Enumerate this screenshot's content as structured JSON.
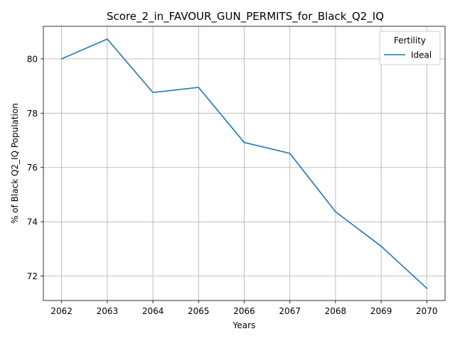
{
  "chart_data": {
    "type": "line",
    "title": "Score_2_in_FAVOUR_GUN_PERMITS_for_Black_Q2_IQ",
    "xlabel": "Years",
    "ylabel": "% of Black Q2_IQ Population",
    "x": [
      2062,
      2063,
      2064,
      2065,
      2066,
      2067,
      2068,
      2069,
      2070
    ],
    "series": [
      {
        "name": "Ideal",
        "values": [
          80.0,
          80.73,
          78.76,
          78.95,
          76.92,
          76.52,
          74.37,
          73.1,
          71.55
        ],
        "color": "#1f77b4"
      }
    ],
    "xlim": [
      2061.6,
      2070.4
    ],
    "ylim": [
      71.1,
      81.2
    ],
    "xticks": [
      "2062",
      "2063",
      "2064",
      "2065",
      "2066",
      "2067",
      "2068",
      "2069",
      "2070"
    ],
    "yticks": [
      "72",
      "74",
      "76",
      "78",
      "80"
    ],
    "grid": true,
    "legend": {
      "title": "Fertility",
      "placement": "top-right"
    }
  }
}
